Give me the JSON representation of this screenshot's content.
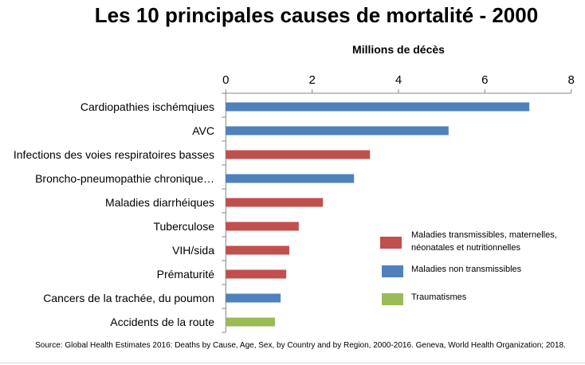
{
  "chart_data": {
    "type": "bar",
    "orientation": "horizontal",
    "title": "Les 10 principales causes de mortalité - 2000",
    "xlabel": "Millions de décès",
    "xlim": [
      0,
      8
    ],
    "xticks": [
      0,
      2,
      4,
      6,
      8
    ],
    "categories": [
      "Cardiopathies ischémqiues",
      "AVC",
      "Infections des voies respiratoires basses",
      "Broncho-pneumopathie chronique…",
      "Maladies diarrhéiques",
      "Tuberculose",
      "VIH/sida",
      "Prématurité",
      "Cancers de la trachée, du poumon",
      "Accidents de la route"
    ],
    "values": [
      7.03,
      5.16,
      3.34,
      2.97,
      2.25,
      1.69,
      1.47,
      1.4,
      1.27,
      1.14
    ],
    "groups": [
      1,
      1,
      0,
      1,
      0,
      0,
      0,
      0,
      1,
      2
    ],
    "legend": [
      {
        "name": "Maladies transmissibles, maternelles, néonatales et nutritionnelles",
        "lines": [
          "Maladies transmissibles, maternelles,",
          "néonatales et nutritionnelles"
        ],
        "color": "#c0504d"
      },
      {
        "name": "Maladies non transmissibles",
        "lines": [
          "Maladies non transmissibles"
        ],
        "color": "#4f81bd"
      },
      {
        "name": "Traumatismes",
        "lines": [
          "Traumatismes"
        ],
        "color": "#9bbb59"
      }
    ],
    "legend_position": "right",
    "grid": false
  },
  "source": "Source: Global Health Estimates 2016: Deaths by Cause, Age, Sex, by Country and by Region, 2000-2016. Geneva, World Health Organization; 2018."
}
